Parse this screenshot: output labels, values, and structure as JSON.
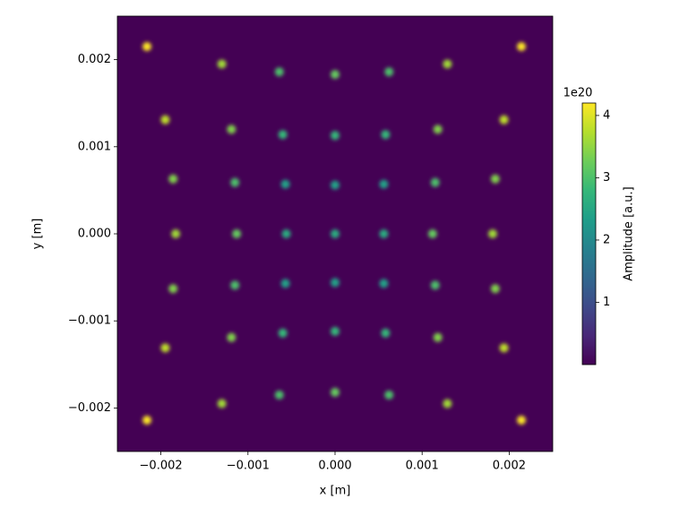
{
  "chart_data": {
    "type": "heatmap",
    "xlabel": "x [m]",
    "ylabel": "y [m]",
    "xlim": [
      -0.0025,
      0.0025
    ],
    "ylim": [
      -0.0025,
      0.0025
    ],
    "xticks": [
      {
        "value": -0.002,
        "label": "−0.002"
      },
      {
        "value": -0.001,
        "label": "−0.001"
      },
      {
        "value": 0,
        "label": "0.000"
      },
      {
        "value": 0.001,
        "label": "0.001"
      },
      {
        "value": 0.002,
        "label": "0.002"
      }
    ],
    "yticks": [
      {
        "value": -0.002,
        "label": "−0.002"
      },
      {
        "value": -0.001,
        "label": "−0.001"
      },
      {
        "value": 0,
        "label": "0.000"
      },
      {
        "value": 0.001,
        "label": "0.001"
      },
      {
        "value": 0.002,
        "label": "0.002"
      }
    ],
    "colormap": "viridis",
    "colorbar": {
      "label": "Amplitude [a.u.]",
      "offset_label": "1e20",
      "lim": [
        0,
        4.2
      ],
      "ticks": [
        1,
        2,
        3,
        4
      ]
    },
    "x": [
      -0.00216,
      -0.0013,
      -0.00064,
      0,
      0.00062,
      0.00129,
      0.00214,
      -0.00195,
      -0.00119,
      -0.0006,
      0,
      0.00058,
      0.00118,
      0.00194,
      -0.00186,
      -0.00115,
      -0.00057,
      0,
      0.00056,
      0.00115,
      0.00184,
      -0.00183,
      -0.00113,
      -0.00056,
      0,
      0.00056,
      0.00112,
      0.00181,
      -0.00186,
      -0.00115,
      -0.00057,
      0,
      0.00056,
      0.00115,
      0.00184,
      -0.00195,
      -0.00119,
      -0.0006,
      0,
      0.00058,
      0.00118,
      0.00194,
      -0.00216,
      -0.0013,
      -0.00064,
      0,
      0.00062,
      0.00129,
      0.00214
    ],
    "y": [
      0.00215,
      0.00195,
      0.00186,
      0.00183,
      0.00186,
      0.00195,
      0.00215,
      0.00131,
      0.0012,
      0.00114,
      0.00113,
      0.00114,
      0.0012,
      0.00131,
      0.00063,
      0.00059,
      0.00057,
      0.00056,
      0.00057,
      0.00059,
      0.00063,
      0,
      0,
      0,
      0,
      0,
      0,
      0,
      -0.00063,
      -0.00059,
      -0.00057,
      -0.00056,
      -0.00057,
      -0.00059,
      -0.00063,
      -0.00131,
      -0.00119,
      -0.00114,
      -0.00112,
      -0.00114,
      -0.00119,
      -0.00131,
      -0.00214,
      -0.00195,
      -0.00185,
      -0.00182,
      -0.00185,
      -0.00195,
      -0.00214
    ],
    "values": [
      4.2,
      3.6,
      3.0,
      3.2,
      3.0,
      3.6,
      4.2,
      3.8,
      3.4,
      2.8,
      2.8,
      2.8,
      3.4,
      3.8,
      3.4,
      3.0,
      2.4,
      2.4,
      2.4,
      3.0,
      3.4,
      3.6,
      3.2,
      2.6,
      2.6,
      2.6,
      3.2,
      3.6,
      3.4,
      3.0,
      2.4,
      2.4,
      2.4,
      3.0,
      3.4,
      3.8,
      3.4,
      2.8,
      2.8,
      2.8,
      3.4,
      3.8,
      4.2,
      3.6,
      3.0,
      3.2,
      3.0,
      3.6,
      4.2
    ]
  }
}
